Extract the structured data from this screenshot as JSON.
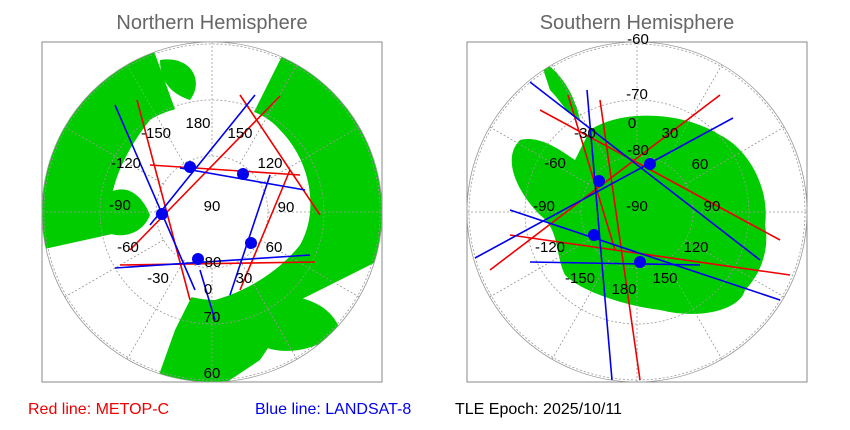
{
  "panels": [
    {
      "title": "Northern Hemisphere",
      "lon_labels": [
        "180",
        "150",
        "120",
        "90",
        "60",
        "30",
        "0",
        "-30",
        "-60",
        "-90",
        "-120",
        "-150"
      ],
      "lat_labels": [
        "90",
        "80",
        "70",
        "60"
      ]
    },
    {
      "title": "Southern Hemisphere",
      "lon_labels": [
        "0",
        "30",
        "60",
        "90",
        "120",
        "150",
        "180",
        "-150",
        "-120",
        "-90",
        "-60",
        "-30"
      ],
      "lat_labels": [
        "-60",
        "-70",
        "-80",
        "-90"
      ]
    }
  ],
  "footer": {
    "red": "Red line: METOP-C",
    "blue": "Blue line: LANDSAT-8",
    "epoch": "TLE Epoch: 2025/10/11"
  }
}
